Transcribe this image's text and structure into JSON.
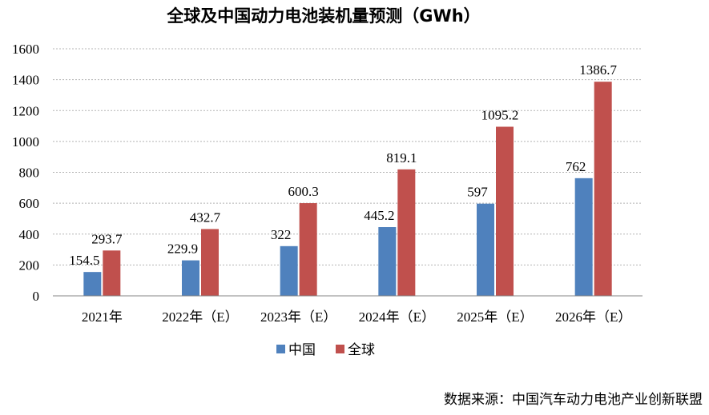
{
  "chart_data": {
    "type": "bar",
    "title": "全球及中国动力电池装机量预测（GWh）",
    "categories": [
      "2021年",
      "2022年（E）",
      "2023年（E）",
      "2024年（E）",
      "2025年（E）",
      "2026年（E）"
    ],
    "series": [
      {
        "name": "中国",
        "color": "#4f81bd",
        "values": [
          154.5,
          229.9,
          322,
          445.2,
          597,
          762
        ],
        "labels": [
          "154.5",
          "229.9",
          "322",
          "445.2",
          "597",
          "762"
        ]
      },
      {
        "name": "全球",
        "color": "#c0504d",
        "values": [
          293.7,
          432.7,
          600.3,
          819.1,
          1095.2,
          1386.7
        ],
        "labels": [
          "293.7",
          "432.7",
          "600.3",
          "819.1",
          "1095.2",
          "1386.7"
        ]
      }
    ],
    "yticks": [
      "0",
      "200",
      "400",
      "600",
      "800",
      "1000",
      "1200",
      "1400",
      "1600"
    ],
    "ylim": [
      0,
      1600
    ],
    "xlabel": "",
    "ylabel": "",
    "grid": true,
    "legend": "bottom"
  },
  "source": "数据来源：中国汽车动力电池产业创新联盟"
}
